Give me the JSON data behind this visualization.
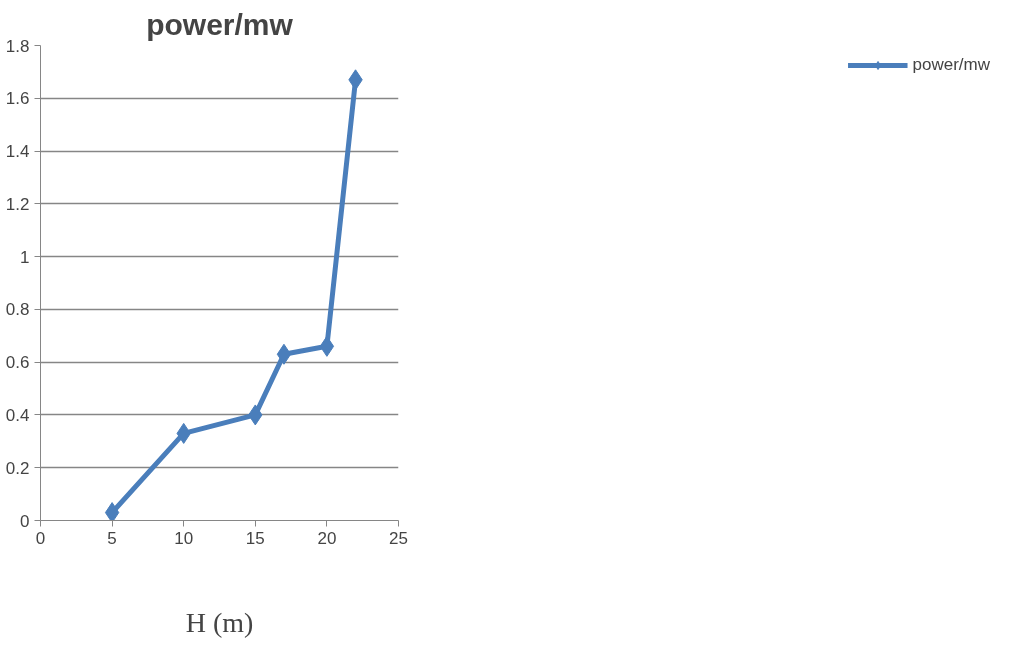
{
  "chart_data": {
    "type": "line",
    "title": "power/mw",
    "xlabel": "H (m)",
    "xlim": [
      0,
      25
    ],
    "xticks": [
      0,
      5,
      10,
      15,
      20,
      25
    ],
    "ylim": [
      0,
      1.8
    ],
    "yticks": [
      0,
      0.2,
      0.4,
      0.6,
      0.8,
      1,
      1.2,
      1.4,
      1.6,
      1.8
    ],
    "grid": "y",
    "legend": "right",
    "marker": "diamond",
    "line_style": "solid",
    "x": [
      5,
      10,
      15,
      17,
      20,
      22
    ],
    "series": [
      {
        "name": "power/mw",
        "color": "#4a7ebb",
        "values": [
          0.03,
          0.33,
          0.4,
          0.63,
          0.66,
          1.67
        ]
      }
    ]
  }
}
